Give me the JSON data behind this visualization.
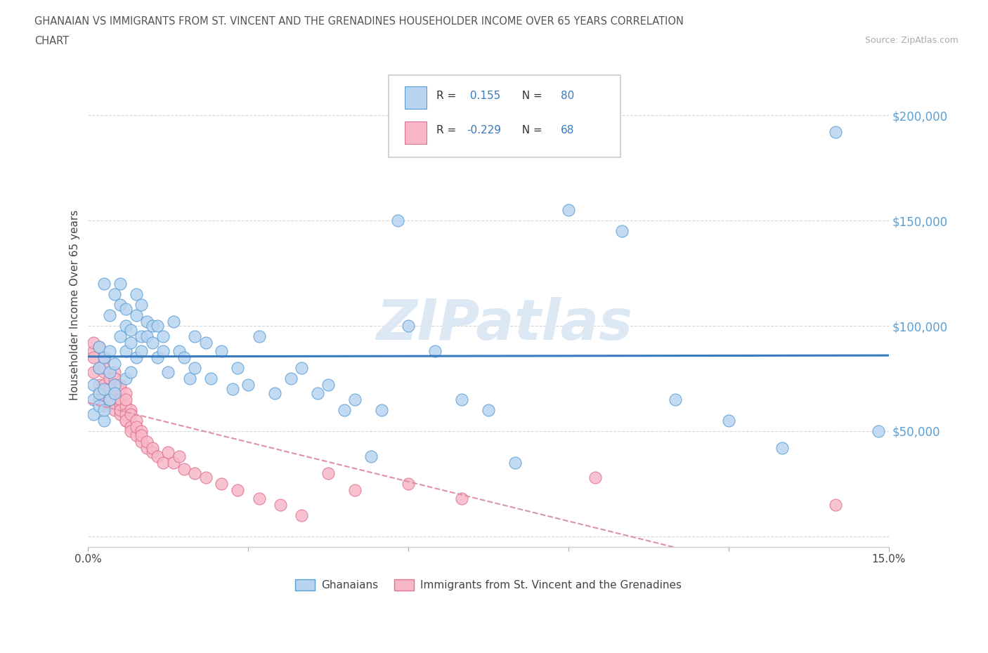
{
  "title_line1": "GHANAIAN VS IMMIGRANTS FROM ST. VINCENT AND THE GRENADINES HOUSEHOLDER INCOME OVER 65 YEARS CORRELATION",
  "title_line2": "CHART",
  "source_text": "Source: ZipAtlas.com",
  "r_ghanaian": 0.155,
  "n_ghanaian": 80,
  "r_stvincent": -0.229,
  "n_stvincent": 68,
  "color_ghanaian_fill": "#b8d4f0",
  "color_ghanaian_edge": "#5a9fd4",
  "color_stvincent_fill": "#f8b8c8",
  "color_stvincent_edge": "#e07090",
  "color_ghanaian_line": "#3a7abf",
  "color_stvincent_line": "#e090a8",
  "color_tick_right": "#5a9fd4",
  "xlabel": "",
  "ylabel": "Householder Income Over 65 years",
  "xlim": [
    0.0,
    0.15
  ],
  "ylim": [
    -5000,
    225000
  ],
  "yticks": [
    0,
    50000,
    100000,
    150000,
    200000
  ],
  "ytick_labels": [
    "",
    "$50,000",
    "$100,000",
    "$150,000",
    "$200,000"
  ],
  "watermark": "ZIPatlas",
  "legend_label_ghanaian": "Ghanaians",
  "legend_label_stvincent": "Immigrants from St. Vincent and the Grenadines",
  "ghanaian_x": [
    0.001,
    0.001,
    0.001,
    0.002,
    0.002,
    0.002,
    0.002,
    0.003,
    0.003,
    0.003,
    0.003,
    0.003,
    0.004,
    0.004,
    0.004,
    0.004,
    0.005,
    0.005,
    0.005,
    0.005,
    0.006,
    0.006,
    0.006,
    0.007,
    0.007,
    0.007,
    0.007,
    0.008,
    0.008,
    0.008,
    0.009,
    0.009,
    0.009,
    0.01,
    0.01,
    0.01,
    0.011,
    0.011,
    0.012,
    0.012,
    0.013,
    0.013,
    0.014,
    0.014,
    0.015,
    0.016,
    0.017,
    0.018,
    0.019,
    0.02,
    0.02,
    0.022,
    0.023,
    0.025,
    0.027,
    0.028,
    0.03,
    0.032,
    0.035,
    0.038,
    0.04,
    0.043,
    0.045,
    0.048,
    0.05,
    0.053,
    0.055,
    0.058,
    0.06,
    0.065,
    0.07,
    0.075,
    0.08,
    0.09,
    0.1,
    0.11,
    0.12,
    0.13,
    0.14,
    0.148
  ],
  "ghanaian_y": [
    65000,
    72000,
    58000,
    80000,
    68000,
    62000,
    90000,
    55000,
    85000,
    70000,
    120000,
    60000,
    78000,
    88000,
    65000,
    105000,
    72000,
    82000,
    115000,
    68000,
    110000,
    95000,
    120000,
    75000,
    100000,
    88000,
    108000,
    92000,
    98000,
    78000,
    105000,
    85000,
    115000,
    95000,
    110000,
    88000,
    102000,
    95000,
    100000,
    92000,
    85000,
    100000,
    88000,
    95000,
    78000,
    102000,
    88000,
    85000,
    75000,
    95000,
    80000,
    92000,
    75000,
    88000,
    70000,
    80000,
    72000,
    95000,
    68000,
    75000,
    80000,
    68000,
    72000,
    60000,
    65000,
    38000,
    60000,
    150000,
    100000,
    88000,
    65000,
    60000,
    35000,
    155000,
    145000,
    65000,
    55000,
    42000,
    192000,
    50000
  ],
  "stvincent_x": [
    0.001,
    0.001,
    0.001,
    0.001,
    0.002,
    0.002,
    0.002,
    0.002,
    0.002,
    0.003,
    0.003,
    0.003,
    0.003,
    0.003,
    0.004,
    0.004,
    0.004,
    0.004,
    0.005,
    0.005,
    0.005,
    0.005,
    0.005,
    0.006,
    0.006,
    0.006,
    0.006,
    0.006,
    0.006,
    0.007,
    0.007,
    0.007,
    0.007,
    0.007,
    0.007,
    0.008,
    0.008,
    0.008,
    0.008,
    0.009,
    0.009,
    0.009,
    0.01,
    0.01,
    0.01,
    0.011,
    0.011,
    0.012,
    0.012,
    0.013,
    0.014,
    0.015,
    0.016,
    0.017,
    0.018,
    0.02,
    0.022,
    0.025,
    0.028,
    0.032,
    0.036,
    0.04,
    0.045,
    0.05,
    0.06,
    0.07,
    0.095,
    0.14
  ],
  "stvincent_y": [
    88000,
    78000,
    92000,
    85000,
    72000,
    80000,
    68000,
    90000,
    65000,
    78000,
    85000,
    62000,
    72000,
    80000,
    68000,
    75000,
    70000,
    65000,
    78000,
    72000,
    60000,
    68000,
    75000,
    62000,
    70000,
    58000,
    65000,
    72000,
    60000,
    68000,
    55000,
    62000,
    58000,
    65000,
    55000,
    60000,
    52000,
    58000,
    50000,
    55000,
    48000,
    52000,
    45000,
    50000,
    48000,
    42000,
    45000,
    40000,
    42000,
    38000,
    35000,
    40000,
    35000,
    38000,
    32000,
    30000,
    28000,
    25000,
    22000,
    18000,
    15000,
    10000,
    30000,
    22000,
    25000,
    18000,
    28000,
    15000
  ]
}
